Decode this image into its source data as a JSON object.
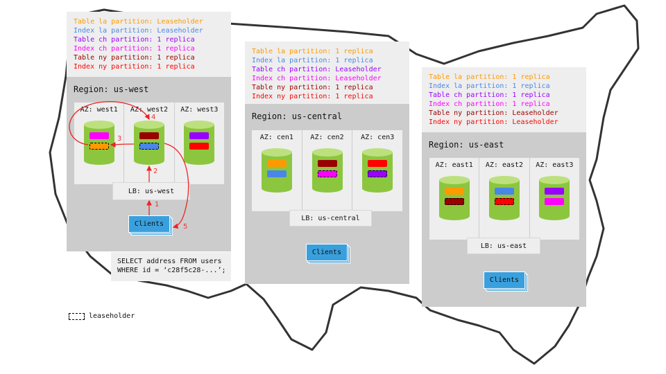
{
  "colors": {
    "table_la": "#ff9900",
    "index_la": "#4a86e8",
    "table_ch": "#9900ff",
    "index_ch": "#ff00ff",
    "table_ny": "#990000",
    "index_ny": "#ff0000",
    "cylinder_body": "#8cc63f",
    "cylinder_top": "#bde07e",
    "clients": "#3aa0dd",
    "arrow": "#ee2222"
  },
  "regions": [
    {
      "id": "us-west",
      "title": "Region: us-west",
      "legend": [
        {
          "text": "Table la partition: Leaseholder",
          "color": "#ff9900"
        },
        {
          "text": "Index la partition: Leaseholder",
          "color": "#4a86e8"
        },
        {
          "text": "Table ch partition: 1 replica",
          "color": "#9900ff"
        },
        {
          "text": "Index ch partition: 1 replica",
          "color": "#ff00ff"
        },
        {
          "text": "Table ny partition: 1 replica",
          "color": "#990000"
        },
        {
          "text": "Index ny partition: 1 replica",
          "color": "#ff0000"
        }
      ],
      "azs": [
        {
          "label": "AZ: west1",
          "bars": [
            {
              "color": "#ff00ff",
              "leaseholder": false
            },
            {
              "color": "#ff9900",
              "leaseholder": true
            }
          ]
        },
        {
          "label": "AZ: west2",
          "bars": [
            {
              "color": "#990000",
              "leaseholder": false
            },
            {
              "color": "#4a86e8",
              "leaseholder": true
            }
          ]
        },
        {
          "label": "AZ: west3",
          "bars": [
            {
              "color": "#9900ff",
              "leaseholder": false
            },
            {
              "color": "#ff0000",
              "leaseholder": false
            }
          ]
        }
      ],
      "lb": "LB: us-west",
      "clients": "Clients"
    },
    {
      "id": "us-central",
      "title": "Region: us-central",
      "legend": [
        {
          "text": "Table la partition: 1 replica",
          "color": "#ff9900"
        },
        {
          "text": "Index la partition: 1 replica",
          "color": "#4a86e8"
        },
        {
          "text": "Table ch partition: Leaseholder",
          "color": "#9900ff"
        },
        {
          "text": "Index ch partition: Leaseholder",
          "color": "#ff00ff"
        },
        {
          "text": "Table ny partition: 1 replica",
          "color": "#990000"
        },
        {
          "text": "Index ny partition: 1 replica",
          "color": "#ff0000"
        }
      ],
      "azs": [
        {
          "label": "AZ: cen1",
          "bars": [
            {
              "color": "#ff9900",
              "leaseholder": false
            },
            {
              "color": "#4a86e8",
              "leaseholder": false
            }
          ]
        },
        {
          "label": "AZ: cen2",
          "bars": [
            {
              "color": "#990000",
              "leaseholder": false
            },
            {
              "color": "#ff00ff",
              "leaseholder": true
            }
          ]
        },
        {
          "label": "AZ: cen3",
          "bars": [
            {
              "color": "#ff0000",
              "leaseholder": false
            },
            {
              "color": "#9900ff",
              "leaseholder": true
            }
          ]
        }
      ],
      "lb": "LB: us-central",
      "clients": "Clients"
    },
    {
      "id": "us-east",
      "title": "Region: us-east",
      "legend": [
        {
          "text": "Table la partition: 1 replica",
          "color": "#ff9900"
        },
        {
          "text": "Index la partition: 1 replica",
          "color": "#4a86e8"
        },
        {
          "text": "Table ch partition: 1 replica",
          "color": "#9900ff"
        },
        {
          "text": "Index ch partition: 1 replica",
          "color": "#ff00ff"
        },
        {
          "text": "Table ny partition: Leaseholder",
          "color": "#990000"
        },
        {
          "text": "Index ny partition: Leaseholder",
          "color": "#ff0000"
        }
      ],
      "azs": [
        {
          "label": "AZ: east1",
          "bars": [
            {
              "color": "#ff9900",
              "leaseholder": false
            },
            {
              "color": "#990000",
              "leaseholder": true
            }
          ]
        },
        {
          "label": "AZ: east2",
          "bars": [
            {
              "color": "#4a86e8",
              "leaseholder": false
            },
            {
              "color": "#ff0000",
              "leaseholder": true
            }
          ]
        },
        {
          "label": "AZ: east3",
          "bars": [
            {
              "color": "#9900ff",
              "leaseholder": false
            },
            {
              "color": "#ff00ff",
              "leaseholder": false
            }
          ]
        }
      ],
      "lb": "LB: us-east",
      "clients": "Clients"
    }
  ],
  "query": {
    "line1": "SELECT address FROM users",
    "line2": "WHERE id = ‘c28f5c28-...’;"
  },
  "steps": [
    "1",
    "2",
    "3",
    "4",
    "5"
  ],
  "key": {
    "leaseholder_label": "leaseholder"
  }
}
